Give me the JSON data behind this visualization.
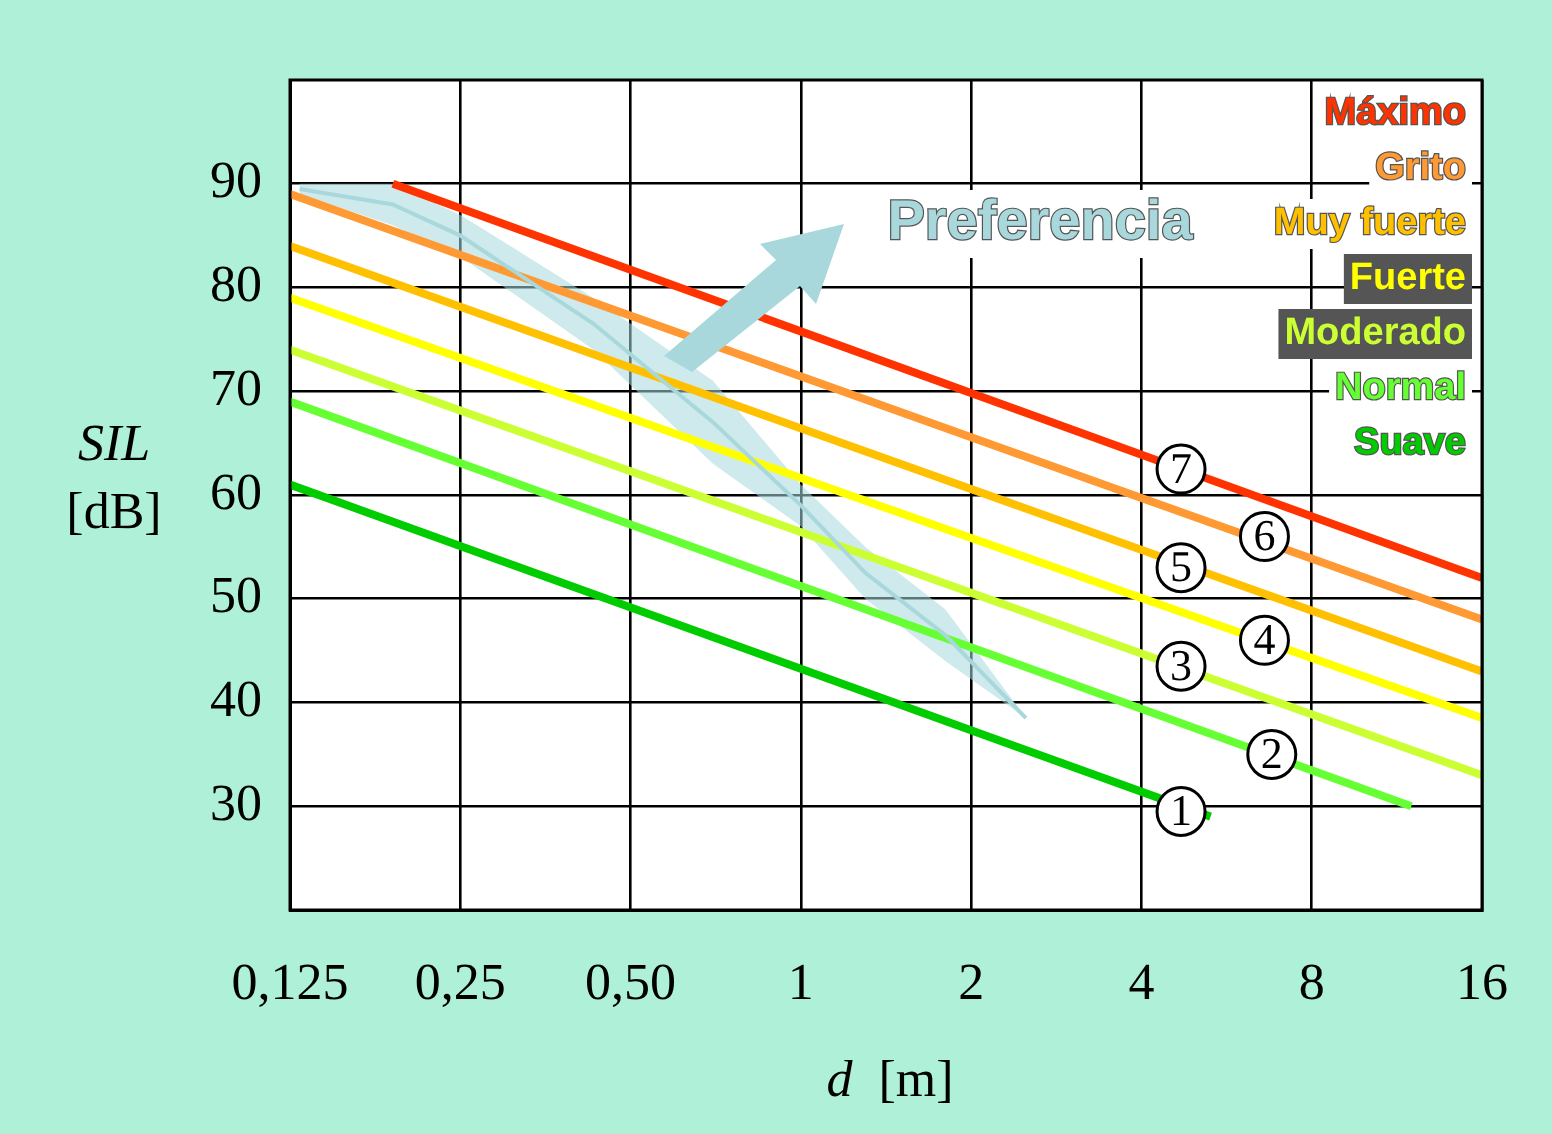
{
  "chart_data": {
    "type": "line",
    "xlabel": "d  [m]",
    "ylabel": "SIL [dB]",
    "log": "x",
    "xlim": [
      0.125,
      16
    ],
    "ylim": [
      20,
      100
    ],
    "xticks": [
      {
        "value": 0.125,
        "label": "0,125"
      },
      {
        "value": 0.25,
        "label": "0,25"
      },
      {
        "value": 0.5,
        "label": "0,50"
      },
      1,
      2,
      4,
      8,
      16
    ],
    "yticks": [
      30,
      40,
      50,
      60,
      70,
      80,
      90
    ],
    "grid": true,
    "legend": "top right",
    "marker": "none",
    "line_style": "solid",
    "series": [
      {
        "name": "Preferencia",
        "type": "line",
        "color": "#a8d8dc",
        "x": [
          0.13,
          0.19,
          0.25,
          0.43,
          0.7,
          1,
          1.3,
          1.8,
          2.5
        ],
        "values": [
          89.5,
          88,
          85,
          76.5,
          67,
          59,
          52.5,
          46.5,
          38.5
        ],
        "lower": [
          89,
          86,
          83,
          74,
          63,
          57,
          50,
          44,
          38.5
        ],
        "upper": [
          90,
          90,
          87,
          79,
          71,
          61,
          55,
          49,
          38.5
        ]
      },
      {
        "name": "Máximo",
        "color": "#ff3300",
        "x": [
          0.19,
          16
        ],
        "values": [
          90,
          52
        ]
      },
      {
        "name": "Grito",
        "color": "#ff9933",
        "x": [
          0.125,
          16
        ],
        "values": [
          89,
          48
        ]
      },
      {
        "name": "Muy fuerte",
        "color": "#ffc000",
        "x": [
          0.125,
          16
        ],
        "values": [
          84,
          43
        ]
      },
      {
        "name": "Fuerte",
        "color": "#ffff00",
        "x": [
          0.125,
          16
        ],
        "values": [
          79,
          38.5
        ]
      },
      {
        "name": "Moderado",
        "color": "#ccff33",
        "x": [
          0.125,
          16
        ],
        "values": [
          74,
          33
        ]
      },
      {
        "name": "Normal",
        "color": "#66ff33",
        "x": [
          0.125,
          12
        ],
        "values": [
          69,
          30
        ]
      },
      {
        "name": "Suave",
        "color": "#00cc00",
        "x": [
          0.125,
          5.3
        ],
        "values": [
          61,
          29
        ]
      }
    ],
    "annotations": [
      {
        "text": "7",
        "x": 4.7,
        "y": 62.5
      },
      {
        "text": "6",
        "x": 6.6,
        "y": 56
      },
      {
        "text": "5",
        "x": 4.7,
        "y": 53
      },
      {
        "text": "4",
        "x": 6.6,
        "y": 46
      },
      {
        "text": "3",
        "x": 4.7,
        "y": 43.5
      },
      {
        "text": "2",
        "x": 6.8,
        "y": 35
      },
      {
        "text": "1",
        "x": 4.7,
        "y": 29.5
      }
    ]
  }
}
